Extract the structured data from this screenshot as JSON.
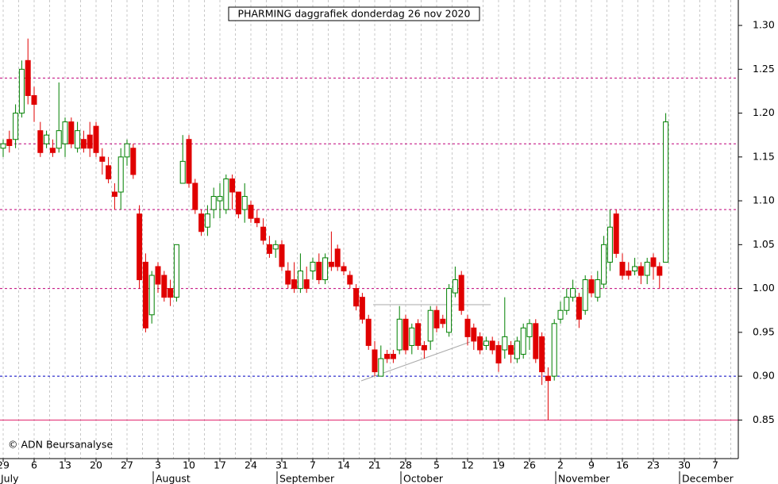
{
  "chart_data": {
    "type": "candlestick",
    "title": "PHARMING daggrafiek donderdag 26 nov 2020",
    "copyright": "© ADN Beursanalyse",
    "x_labels": [
      "29",
      "6",
      "13",
      "20",
      "27",
      "3",
      "10",
      "17",
      "24",
      "31",
      "7",
      "14",
      "21",
      "28",
      "5",
      "12",
      "19",
      "26",
      "2",
      "9",
      "16",
      "23",
      "30",
      "7"
    ],
    "month_labels": [
      "July",
      null,
      null,
      null,
      null,
      "August",
      null,
      null,
      null,
      "September",
      null,
      null,
      null,
      "October",
      null,
      null,
      null,
      null,
      "November",
      null,
      null,
      null,
      "December",
      null
    ],
    "ylim": [
      0.806,
      1.329
    ],
    "yticks": [
      0.85,
      {
        "value": 0.9,
        "label": "0.90"
      },
      0.95,
      {
        "value": 1,
        "label": "1.00"
      },
      1.05,
      {
        "value": 1.1,
        "label": "1.10"
      },
      1.15,
      {
        "value": 1.2,
        "label": "1.20"
      },
      1.25,
      {
        "value": 1.3,
        "label": "1.30"
      }
    ],
    "up_color": "#008000",
    "down_color": "#e00000",
    "levels": [
      {
        "value": 1.24,
        "color": "#c0007a",
        "dash": true
      },
      {
        "value": 1.165,
        "color": "#c0007a",
        "dash": true
      },
      {
        "value": 1.09,
        "color": "#c0007a",
        "dash": true
      },
      {
        "value": 1.0,
        "color": "#c0007a",
        "dash": true
      },
      {
        "value": 0.9,
        "color": "#0000c0",
        "dash": true
      },
      {
        "value": 0.85,
        "color": "#e0206a",
        "dash": false
      }
    ],
    "open": [
      1.16,
      1.17,
      1.17,
      1.2,
      1.26,
      1.22,
      1.18,
      1.165,
      1.16,
      1.16,
      1.165,
      1.19,
      1.16,
      1.17,
      1.175,
      1.185,
      1.15,
      1.14,
      1.11,
      1.11,
      1.15,
      1.16,
      1.085,
      1.03,
      0.97,
      1.025,
      1.015,
      1.0,
      0.99,
      1.12,
      1.17,
      1.12,
      1.085,
      1.07,
      1.09,
      1.1,
      1.09,
      1.125,
      1.11,
      1.09,
      1.095,
      1.08,
      1.07,
      1.05,
      1.045,
      1.05,
      1.02,
      1.01,
      1.0,
      1.01,
      1.02,
      1.03,
      1.01,
      1.03,
      1.045,
      1.025,
      1.015,
      1.0,
      0.99,
      0.965,
      0.93,
      0.9,
      0.925,
      0.925,
      0.93,
      0.965,
      0.935,
      0.96,
      0.935,
      0.94,
      0.975,
      0.965,
      0.95,
      0.995,
      1.015,
      0.965,
      0.955,
      0.945,
      0.935,
      0.94,
      0.935,
      0.93,
      0.935,
      0.92,
      0.925,
      0.945,
      0.96,
      0.945,
      0.9,
      0.9,
      0.965,
      0.975,
      0.99,
      0.99,
      0.975,
      1.01,
      0.99,
      1.005,
      1.03,
      1.085,
      1.03,
      1.02,
      1.02,
      1.025,
      1.015,
      1.035,
      1.025,
      1.03
    ],
    "high": [
      1.17,
      1.18,
      1.21,
      1.26,
      1.285,
      1.23,
      1.19,
      1.18,
      1.17,
      1.235,
      1.195,
      1.195,
      1.19,
      1.18,
      1.19,
      1.19,
      1.16,
      1.15,
      1.12,
      1.16,
      1.17,
      1.165,
      1.095,
      1.04,
      1.02,
      1.03,
      1.02,
      1.01,
      1.05,
      1.175,
      1.175,
      1.125,
      1.09,
      1.095,
      1.115,
      1.12,
      1.13,
      1.13,
      1.11,
      1.12,
      1.1,
      1.09,
      1.08,
      1.06,
      1.055,
      1.055,
      1.03,
      1.03,
      1.04,
      1.025,
      1.035,
      1.04,
      1.04,
      1.065,
      1.05,
      1.03,
      1.02,
      1.005,
      0.995,
      0.97,
      0.94,
      0.935,
      0.93,
      0.93,
      0.98,
      0.97,
      0.96,
      0.965,
      0.94,
      0.98,
      0.98,
      0.97,
      1.005,
      1.025,
      1.02,
      0.97,
      0.96,
      0.95,
      0.945,
      0.945,
      0.94,
      0.99,
      0.94,
      0.945,
      0.96,
      0.965,
      0.965,
      0.95,
      0.91,
      0.965,
      0.985,
      1.0,
      1.01,
      0.995,
      1.015,
      1.015,
      1.02,
      1.06,
      1.09,
      1.09,
      1.04,
      1.03,
      1.035,
      1.03,
      1.035,
      1.04,
      1.03,
      1.2
    ],
    "low": [
      1.15,
      1.155,
      1.16,
      1.195,
      1.21,
      1.19,
      1.15,
      1.16,
      1.15,
      1.155,
      1.15,
      1.16,
      1.155,
      1.155,
      1.15,
      1.15,
      1.13,
      1.12,
      1.09,
      1.09,
      1.14,
      1.125,
      1.0,
      0.95,
      0.96,
      0.995,
      0.985,
      0.98,
      0.985,
      1.12,
      1.115,
      1.085,
      1.06,
      1.06,
      1.08,
      1.08,
      1.085,
      1.09,
      1.08,
      1.075,
      1.075,
      1.07,
      1.05,
      1.035,
      1.035,
      1.02,
      1.0,
      0.995,
      0.995,
      0.995,
      1.01,
      1.005,
      1.005,
      1.02,
      1.02,
      1.015,
      1.0,
      0.975,
      0.96,
      0.93,
      0.9,
      0.9,
      0.915,
      0.915,
      0.925,
      0.925,
      0.925,
      0.93,
      0.92,
      0.93,
      0.95,
      0.955,
      0.945,
      0.99,
      0.97,
      0.935,
      0.93,
      0.925,
      0.93,
      0.925,
      0.905,
      0.92,
      0.915,
      0.915,
      0.92,
      0.93,
      0.915,
      0.89,
      0.85,
      0.895,
      0.96,
      0.97,
      0.985,
      0.955,
      0.97,
      0.99,
      0.985,
      1.0,
      1.02,
      1.035,
      1.01,
      1.01,
      1.015,
      1.005,
      1.005,
      1.01,
      1.0,
      1.03
    ],
    "close": [
      1.165,
      1.163,
      1.2,
      1.25,
      1.22,
      1.21,
      1.155,
      1.175,
      1.155,
      1.18,
      1.19,
      1.165,
      1.18,
      1.16,
      1.16,
      1.155,
      1.145,
      1.125,
      1.105,
      1.15,
      1.165,
      1.13,
      1.01,
      0.955,
      1.015,
      1.005,
      0.99,
      0.99,
      1.05,
      1.145,
      1.12,
      1.09,
      1.065,
      1.085,
      1.105,
      1.105,
      1.125,
      1.11,
      1.085,
      1.105,
      1.08,
      1.075,
      1.055,
      1.04,
      1.05,
      1.025,
      1.005,
      1.0,
      1.02,
      1.0,
      1.03,
      1.01,
      1.035,
      1.025,
      1.025,
      1.02,
      1.005,
      0.98,
      0.965,
      0.935,
      0.905,
      0.92,
      0.92,
      0.92,
      0.965,
      0.93,
      0.955,
      0.935,
      0.93,
      0.975,
      0.955,
      0.96,
      1.0,
      1.01,
      0.975,
      0.945,
      0.94,
      0.93,
      0.94,
      0.93,
      0.915,
      0.945,
      0.925,
      0.94,
      0.955,
      0.96,
      0.92,
      0.905,
      0.895,
      0.96,
      0.975,
      0.99,
      1.0,
      0.965,
      1.01,
      0.995,
      1.01,
      1.05,
      1.07,
      1.04,
      1.015,
      1.015,
      1.025,
      1.015,
      1.03,
      1.025,
      1.015,
      1.19
    ]
  }
}
